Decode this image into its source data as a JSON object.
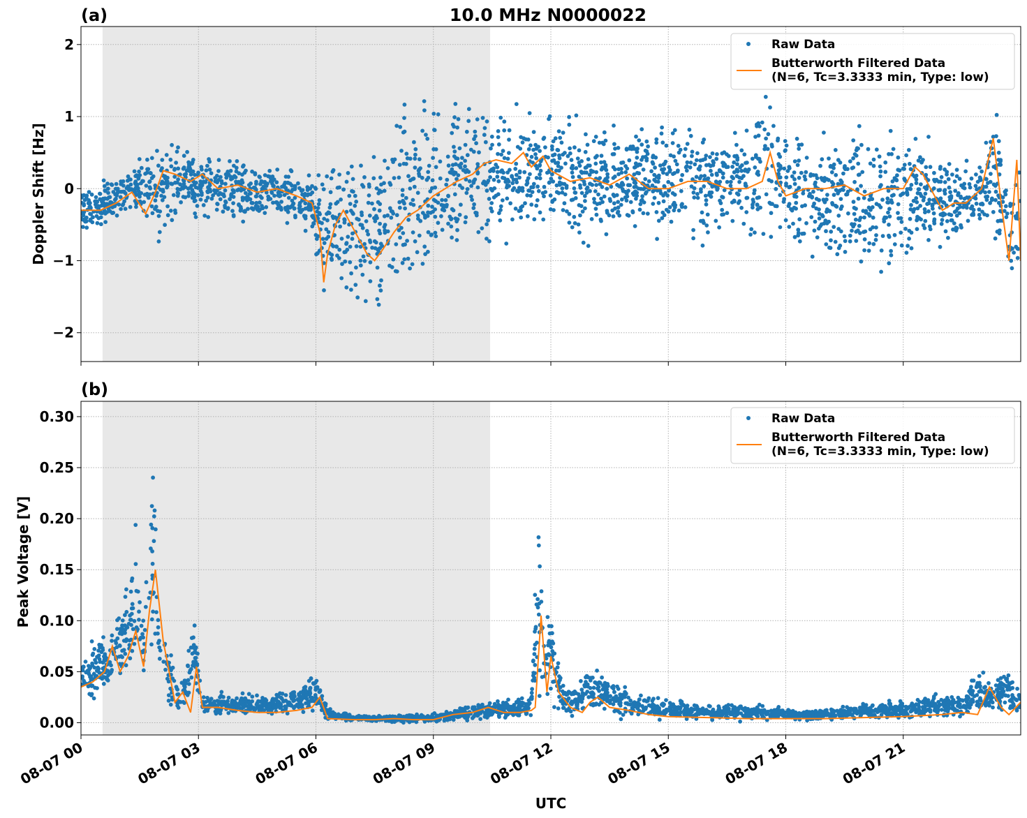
{
  "figure": {
    "suptitle": "10.0 MHz N0000022",
    "xlabel": "UTC"
  },
  "colors": {
    "raw": "#1f77b4",
    "filtered": "#ff7f0e",
    "shade": "#e8e8e8",
    "grid": "#b0b0b0"
  },
  "chart_data": [
    {
      "type": "scatter",
      "panel_label": "(a)",
      "ylabel": "Doppler Shift [Hz]",
      "xlim_hours": [
        0,
        24
      ],
      "ylim": [
        -2.4,
        2.25
      ],
      "yticks": [
        -2,
        -1,
        0,
        1,
        2
      ],
      "ytick_labels": [
        "−2",
        "−1",
        "0",
        "1",
        "2"
      ],
      "shaded_interval_hours": [
        0.55,
        10.45
      ],
      "grid": true,
      "legend_position": "top-right",
      "legend": [
        "Raw Data",
        "Butterworth Filtered Data\n(N=6, Tc=3.3333 min, Type: low)"
      ],
      "series": [
        {
          "name": "Raw Data",
          "style": "dots",
          "envelope": {
            "x": [
              0,
              0.5,
              1,
              1.5,
              1.9,
              2.5,
              3,
              4,
              5,
              5.9,
              6.2,
              6.5,
              7,
              7.5,
              8,
              8.5,
              9,
              9.5,
              10,
              10.5,
              11,
              11.5,
              12,
              13,
              14,
              15,
              16,
              17,
              17.6,
              18,
              19,
              20,
              21,
              21.5,
              22,
              22.5,
              23,
              23.4,
              23.7,
              24
            ],
            "lower": [
              -0.7,
              -0.6,
              -0.55,
              -0.5,
              -1.0,
              -0.4,
              -0.5,
              -0.6,
              -0.5,
              -0.7,
              -2.0,
              -1.5,
              -1.8,
              -2.0,
              -1.9,
              -1.7,
              -1.5,
              -1.2,
              -1.0,
              -1.0,
              -0.9,
              -0.8,
              -0.7,
              -0.9,
              -0.7,
              -0.8,
              -0.9,
              -0.8,
              -1.0,
              -0.9,
              -1.2,
              -1.3,
              -1.2,
              -0.9,
              -1.0,
              -0.9,
              -0.7,
              -1.0,
              -1.5,
              -1.5
            ],
            "upper": [
              0.1,
              0.15,
              0.3,
              0.6,
              0.7,
              0.75,
              0.6,
              0.5,
              0.4,
              0.3,
              0.4,
              0.5,
              0.7,
              0.8,
              1.2,
              1.4,
              1.5,
              1.5,
              1.4,
              1.3,
              1.3,
              1.2,
              1.1,
              1.1,
              1.0,
              1.0,
              1.1,
              1.0,
              1.6,
              1.0,
              1.0,
              1.1,
              0.9,
              0.9,
              0.7,
              0.6,
              0.6,
              1.2,
              0.5,
              0.6
            ]
          }
        },
        {
          "name": "Butterworth Filtered Data\n(N=6, Tc=3.3333 min, Type: low)",
          "style": "line",
          "x": [
            0,
            0.5,
            0.9,
            1.3,
            1.65,
            1.9,
            2.1,
            2.4,
            2.8,
            3.1,
            3.5,
            4.0,
            4.5,
            5.0,
            5.5,
            5.9,
            6.1,
            6.2,
            6.3,
            6.5,
            6.7,
            7.0,
            7.3,
            7.5,
            7.7,
            8.0,
            8.3,
            8.6,
            9.0,
            9.3,
            9.6,
            10.0,
            10.3,
            10.6,
            11.0,
            11.3,
            11.5,
            11.8,
            12.0,
            12.5,
            13.0,
            13.5,
            14.0,
            14.5,
            15.0,
            15.5,
            16.0,
            16.5,
            17.0,
            17.4,
            17.6,
            17.8,
            18.0,
            18.5,
            19.0,
            19.5,
            20.0,
            20.5,
            21.0,
            21.3,
            21.5,
            21.8,
            22.0,
            22.3,
            22.6,
            23.0,
            23.3,
            23.5,
            23.7,
            23.9,
            24.0
          ],
          "y": [
            -0.3,
            -0.3,
            -0.2,
            -0.05,
            -0.35,
            -0.05,
            0.25,
            0.2,
            0.1,
            0.2,
            0.0,
            0.05,
            -0.05,
            0.0,
            -0.1,
            -0.2,
            -0.6,
            -1.3,
            -0.9,
            -0.5,
            -0.3,
            -0.6,
            -0.9,
            -1.0,
            -0.85,
            -0.6,
            -0.4,
            -0.3,
            -0.1,
            0.0,
            0.1,
            0.2,
            0.35,
            0.4,
            0.35,
            0.5,
            0.3,
            0.45,
            0.25,
            0.1,
            0.15,
            0.05,
            0.2,
            0.0,
            0.0,
            0.1,
            0.1,
            0.0,
            0.0,
            0.1,
            0.5,
            0.1,
            -0.1,
            0.0,
            0.0,
            0.05,
            -0.1,
            0.0,
            0.0,
            0.3,
            0.2,
            -0.1,
            -0.3,
            -0.2,
            -0.2,
            0.0,
            0.7,
            -0.2,
            -1.0,
            0.4,
            -1.0
          ]
        }
      ]
    },
    {
      "type": "scatter",
      "panel_label": "(b)",
      "ylabel": "Peak Voltage [V]",
      "xlim_hours": [
        0,
        24
      ],
      "ylim": [
        -0.012,
        0.315
      ],
      "yticks": [
        0.0,
        0.05,
        0.1,
        0.15,
        0.2,
        0.25,
        0.3
      ],
      "ytick_labels": [
        "0.00",
        "0.05",
        "0.10",
        "0.15",
        "0.20",
        "0.25",
        "0.30"
      ],
      "xticks_hours": [
        0,
        3,
        6,
        9,
        12,
        15,
        18,
        21
      ],
      "xtick_labels": [
        "08-07 00",
        "08-07 03",
        "08-07 06",
        "08-07 09",
        "08-07 12",
        "08-07 15",
        "08-07 18",
        "08-07 21"
      ],
      "shaded_interval_hours": [
        0.55,
        10.45
      ],
      "grid": true,
      "legend_position": "top-right",
      "legend": [
        "Raw Data",
        "Butterworth Filtered Data\n(N=6, Tc=3.3333 min, Type: low)"
      ],
      "series": [
        {
          "name": "Raw Data",
          "style": "dots",
          "envelope": {
            "x": [
              0,
              0.4,
              0.8,
              1.2,
              1.4,
              1.6,
              1.85,
              2.0,
              2.3,
              2.5,
              2.75,
              2.9,
              3.1,
              4.0,
              5.0,
              5.8,
              6.0,
              6.3,
              7.0,
              8.0,
              9.0,
              10.0,
              11.0,
              11.5,
              11.7,
              11.85,
              12.0,
              12.3,
              12.7,
              13.0,
              13.3,
              14.0,
              15.0,
              16.0,
              17.0,
              18.0,
              19.0,
              20.0,
              21.0,
              22.0,
              22.5,
              22.9,
              23.3,
              23.6,
              24.0
            ],
            "lower": [
              0.02,
              0.02,
              0.03,
              0.03,
              0.04,
              0.03,
              0.04,
              0.03,
              0.01,
              0.005,
              0.01,
              0.02,
              0.005,
              0.005,
              0.005,
              0.005,
              0.008,
              0.001,
              0.001,
              0.0,
              0.0,
              0.002,
              0.003,
              0.005,
              0.01,
              0.02,
              0.01,
              0.005,
              0.005,
              0.008,
              0.005,
              0.002,
              0.001,
              0.001,
              0.001,
              0.001,
              0.001,
              0.002,
              0.002,
              0.002,
              0.003,
              0.003,
              0.01,
              0.005,
              0.005
            ],
            "upper": [
              0.065,
              0.09,
              0.1,
              0.14,
              0.2,
              0.13,
              0.3,
              0.12,
              0.07,
              0.04,
              0.08,
              0.11,
              0.03,
              0.03,
              0.03,
              0.045,
              0.055,
              0.015,
              0.008,
              0.008,
              0.01,
              0.02,
              0.025,
              0.03,
              0.23,
              0.1,
              0.13,
              0.04,
              0.04,
              0.065,
              0.05,
              0.035,
              0.025,
              0.02,
              0.02,
              0.015,
              0.015,
              0.02,
              0.025,
              0.03,
              0.03,
              0.06,
              0.04,
              0.06,
              0.035
            ]
          }
        },
        {
          "name": "Butterworth Filtered Data\n(N=6, Tc=3.3333 min, Type: low)",
          "style": "line",
          "x": [
            0,
            0.3,
            0.6,
            0.8,
            1.0,
            1.2,
            1.4,
            1.6,
            1.75,
            1.9,
            2.1,
            2.3,
            2.4,
            2.6,
            2.8,
            2.95,
            3.1,
            3.5,
            4.0,
            4.5,
            5.0,
            5.5,
            5.9,
            6.1,
            6.3,
            7.0,
            7.5,
            8.0,
            8.5,
            9.0,
            9.5,
            10.0,
            10.4,
            10.8,
            11.2,
            11.5,
            11.6,
            11.75,
            11.9,
            12.0,
            12.2,
            12.5,
            12.8,
            13.0,
            13.2,
            13.5,
            14.0,
            14.5,
            15.0,
            16.0,
            17.0,
            18.0,
            19.0,
            20.0,
            21.0,
            22.0,
            22.5,
            22.9,
            23.2,
            23.5,
            23.7,
            24.0
          ],
          "y": [
            0.035,
            0.04,
            0.05,
            0.075,
            0.05,
            0.065,
            0.09,
            0.055,
            0.11,
            0.15,
            0.08,
            0.04,
            0.02,
            0.03,
            0.01,
            0.055,
            0.015,
            0.015,
            0.012,
            0.01,
            0.01,
            0.012,
            0.015,
            0.025,
            0.004,
            0.003,
            0.003,
            0.004,
            0.003,
            0.003,
            0.008,
            0.01,
            0.015,
            0.01,
            0.01,
            0.012,
            0.015,
            0.105,
            0.03,
            0.065,
            0.03,
            0.015,
            0.01,
            0.02,
            0.025,
            0.015,
            0.012,
            0.008,
            0.006,
            0.005,
            0.004,
            0.004,
            0.004,
            0.005,
            0.006,
            0.008,
            0.01,
            0.008,
            0.035,
            0.015,
            0.008,
            0.02
          ]
        }
      ]
    }
  ]
}
